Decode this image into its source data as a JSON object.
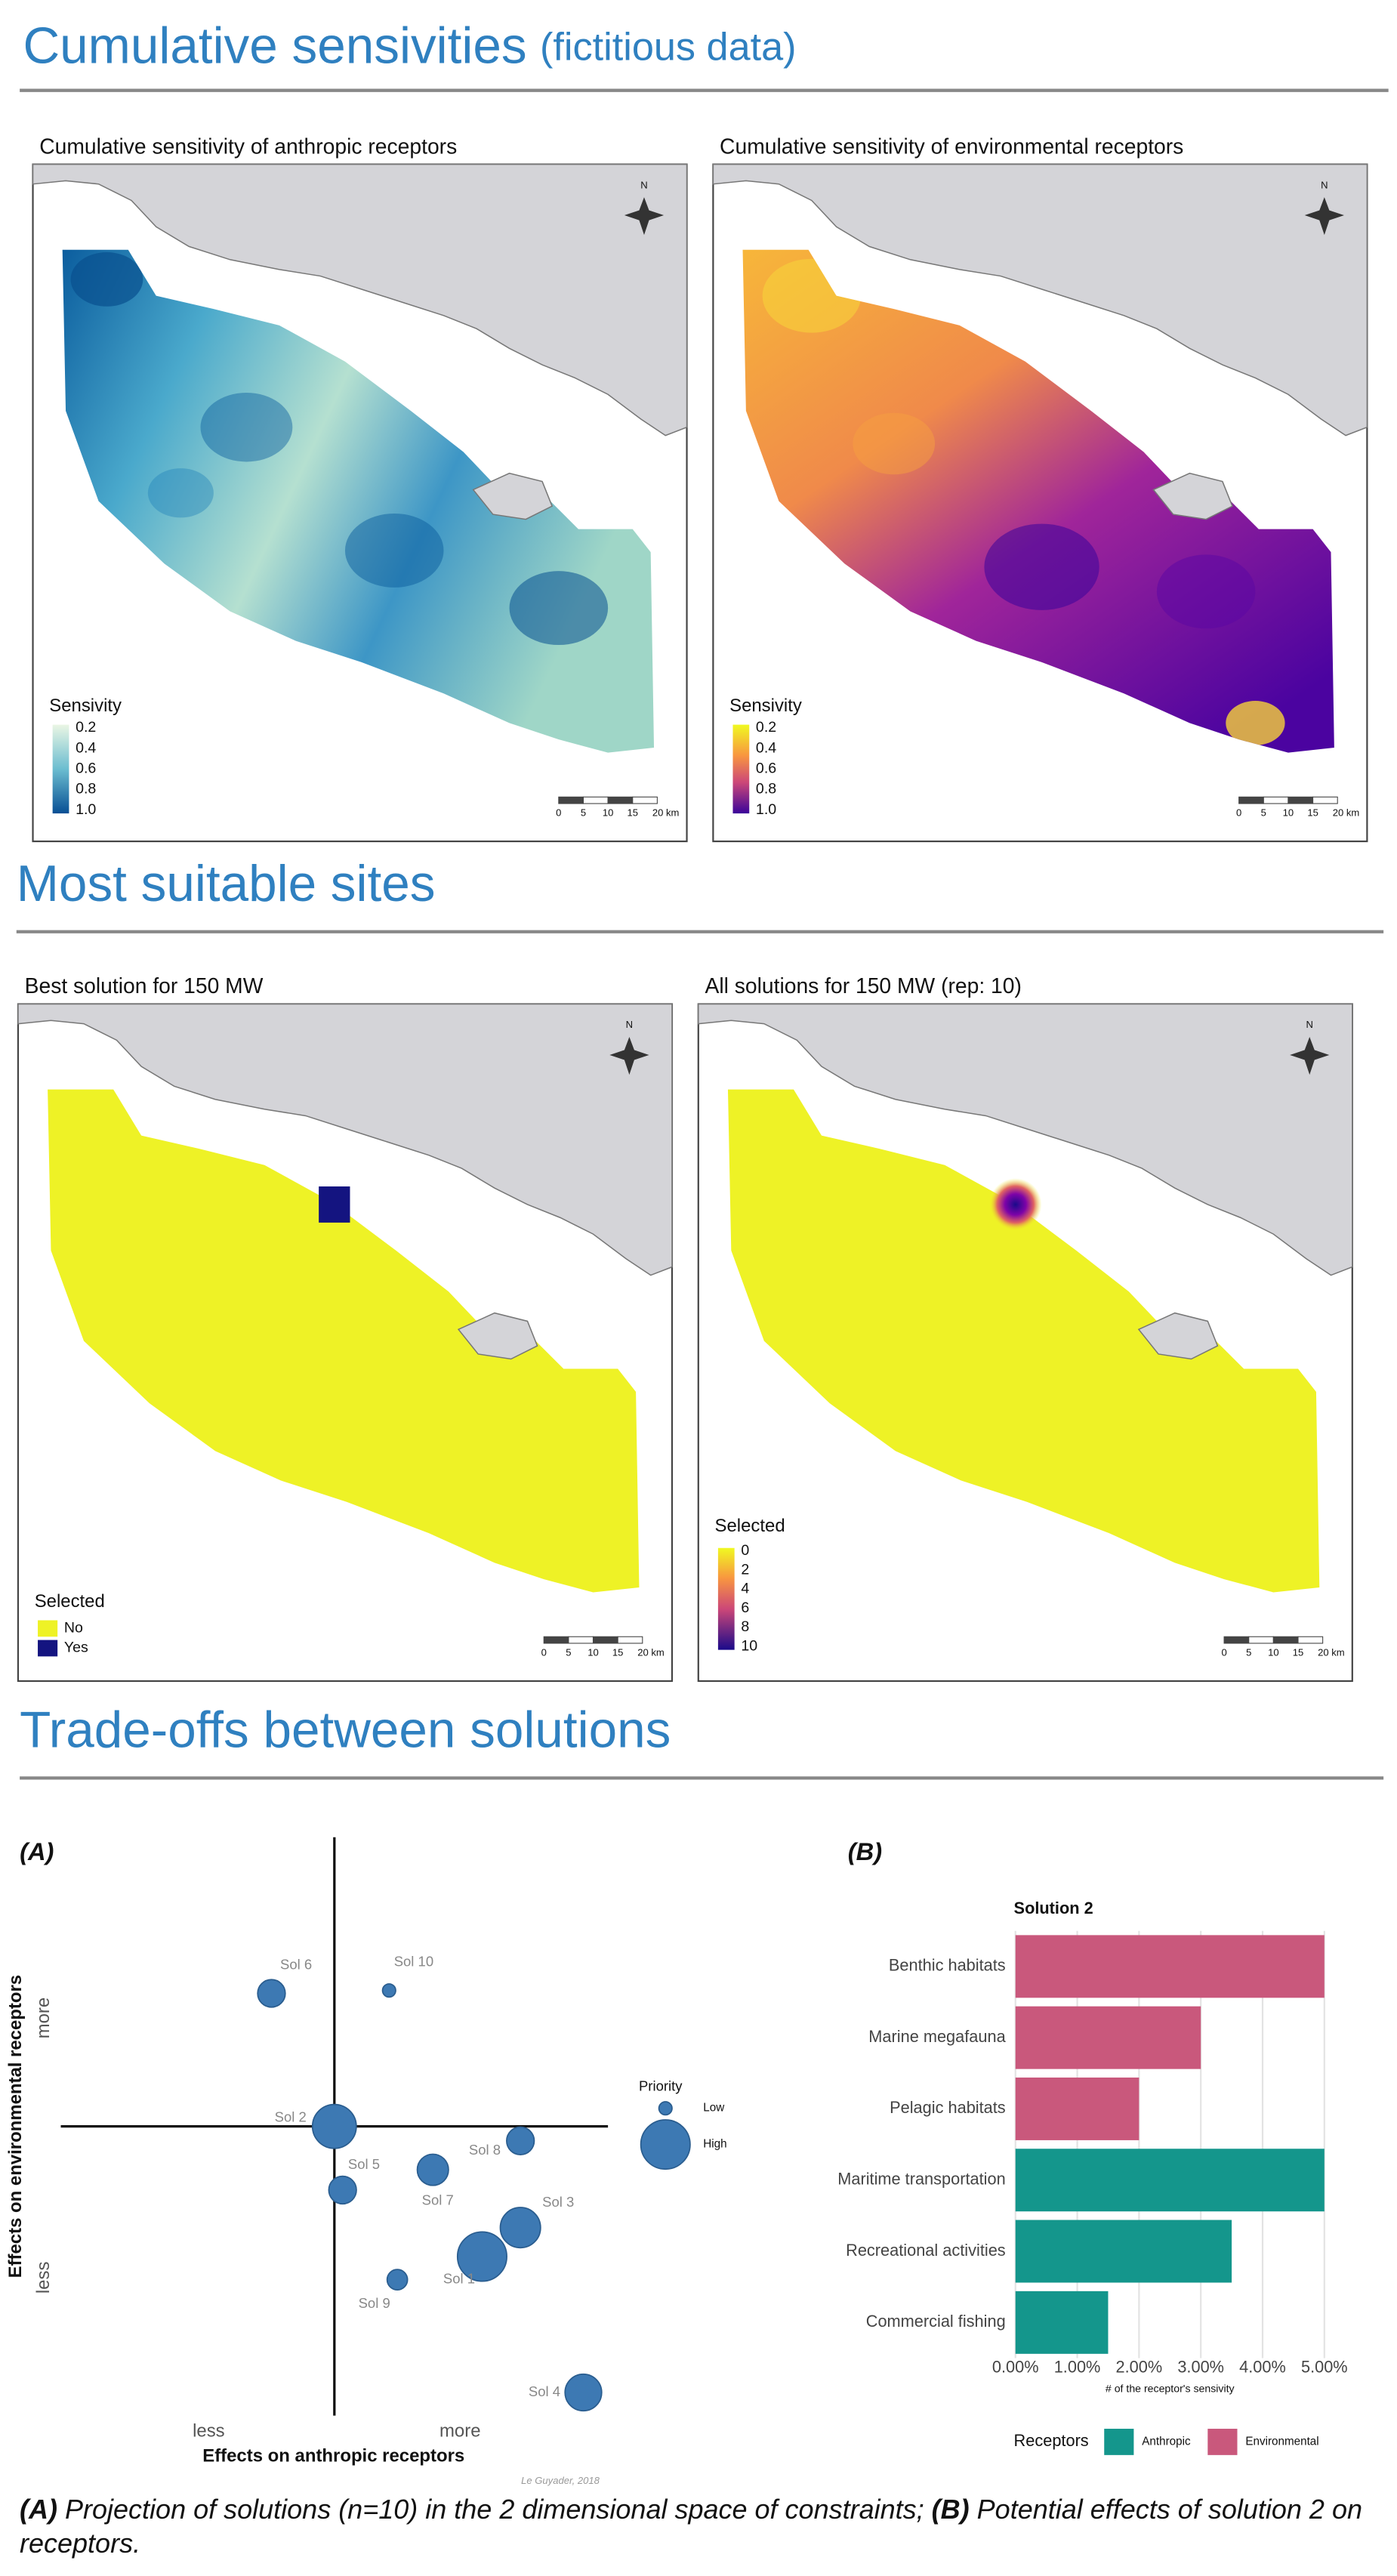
{
  "sections": [
    {
      "title": "Cumulative sensivities",
      "subtitle": "(fictitious data)"
    },
    {
      "title": "Most suitable sites"
    },
    {
      "title": "Trade-offs between solutions"
    }
  ],
  "maps": [
    {
      "title": "Cumulative sensitivity of anthropic receptors",
      "compass": "N",
      "legend_title": "Sensivity",
      "legend_labels": [
        "0.2",
        "0.4",
        "0.6",
        "0.8",
        "1.0"
      ],
      "scale_labels": [
        "0",
        "5",
        "10",
        "15",
        "20 km"
      ]
    },
    {
      "title": "Cumulative sensitivity of environmental receptors",
      "compass": "N",
      "legend_title": "Sensivity",
      "legend_labels": [
        "0.2",
        "0.4",
        "0.6",
        "0.8",
        "1.0"
      ],
      "scale_labels": [
        "0",
        "5",
        "10",
        "15",
        "20 km"
      ]
    },
    {
      "title": "Best solution for 150 MW",
      "compass": "N",
      "legend_title": "Selected",
      "legend_labels": [
        "No",
        "Yes"
      ],
      "scale_labels": [
        "0",
        "5",
        "10",
        "15",
        "20 km"
      ]
    },
    {
      "title": "All solutions for 150 MW (rep: 10)",
      "compass": "N",
      "legend_title": "Selected",
      "legend_labels": [
        "0",
        "2",
        "4",
        "6",
        "8",
        "10"
      ],
      "scale_labels": [
        "0",
        "5",
        "10",
        "15",
        "20 km"
      ]
    }
  ],
  "panel_labels": [
    "(A)",
    "(B)"
  ],
  "chart_data": [
    {
      "type": "scatter",
      "x_label": "Effects on anthropic receptors",
      "y_label": "Effects on environmental receptors",
      "x_axis_labels": [
        "less",
        "more"
      ],
      "y_axis_labels": [
        "less",
        "more"
      ],
      "xlim": [
        -1,
        1
      ],
      "ylim": [
        -1,
        1
      ],
      "color": "#3d79b3",
      "labels": [
        "Sol 6",
        "Sol 10",
        "Sol 2",
        "Sol 8",
        "Sol 5",
        "Sol 7",
        "Sol 3",
        "Sol 1",
        "Sol 9",
        "Sol 4"
      ],
      "x": [
        -0.23,
        0.2,
        0,
        0.68,
        0.03,
        0.36,
        0.68,
        0.54,
        0.23,
        0.91
      ],
      "y": [
        0.46,
        0.47,
        0,
        -0.05,
        -0.22,
        -0.15,
        -0.35,
        -0.45,
        -0.53,
        -0.92
      ],
      "sizes": [
        0.4,
        0,
        0.85,
        0.4,
        0.4,
        0.5,
        0.75,
        1,
        0.2,
        0.65
      ],
      "size_legend_title": "Priority",
      "size_legend": [
        {
          "value": 0,
          "label": "Low"
        },
        {
          "value": 1,
          "label": "High"
        }
      ]
    },
    {
      "type": "bar",
      "orientation": "horizontal",
      "title": "Solution 2",
      "categories": [
        "Benthic habitats",
        "Marine megafauna",
        "Pelagic habitats",
        "Maritime transportation",
        "Recreational activities",
        "Commercial fishing"
      ],
      "series": [
        {
          "name": "Anthropic",
          "color": "#14968c",
          "values": [
            null,
            null,
            null,
            5,
            3.5,
            1.5
          ]
        },
        {
          "name": "Environmental",
          "color": "#c9587c",
          "values": [
            5,
            3,
            2,
            null,
            null,
            null
          ]
        }
      ],
      "xlim": [
        0,
        5
      ],
      "xticks": [
        {
          "value": 0,
          "label": "0.00%"
        },
        {
          "value": 1,
          "label": "1.00%"
        },
        {
          "value": 2,
          "label": "2.00%"
        },
        {
          "value": 3,
          "label": "3.00%"
        },
        {
          "value": 4,
          "label": "4.00%"
        },
        {
          "value": 5,
          "label": "5.00%"
        }
      ],
      "x_label": "# of the receptor's sensivity",
      "legend_title": "Receptors",
      "grid": true
    }
  ],
  "credit": "Le Guyader, 2018",
  "caption": {
    "a_label": "(A)",
    "a_text": "Projection of solutions (n=10) in the 2 dimensional space of constraints;",
    "b_label": "(B)",
    "b_text": "Potential effects of solution 2 on receptors."
  }
}
